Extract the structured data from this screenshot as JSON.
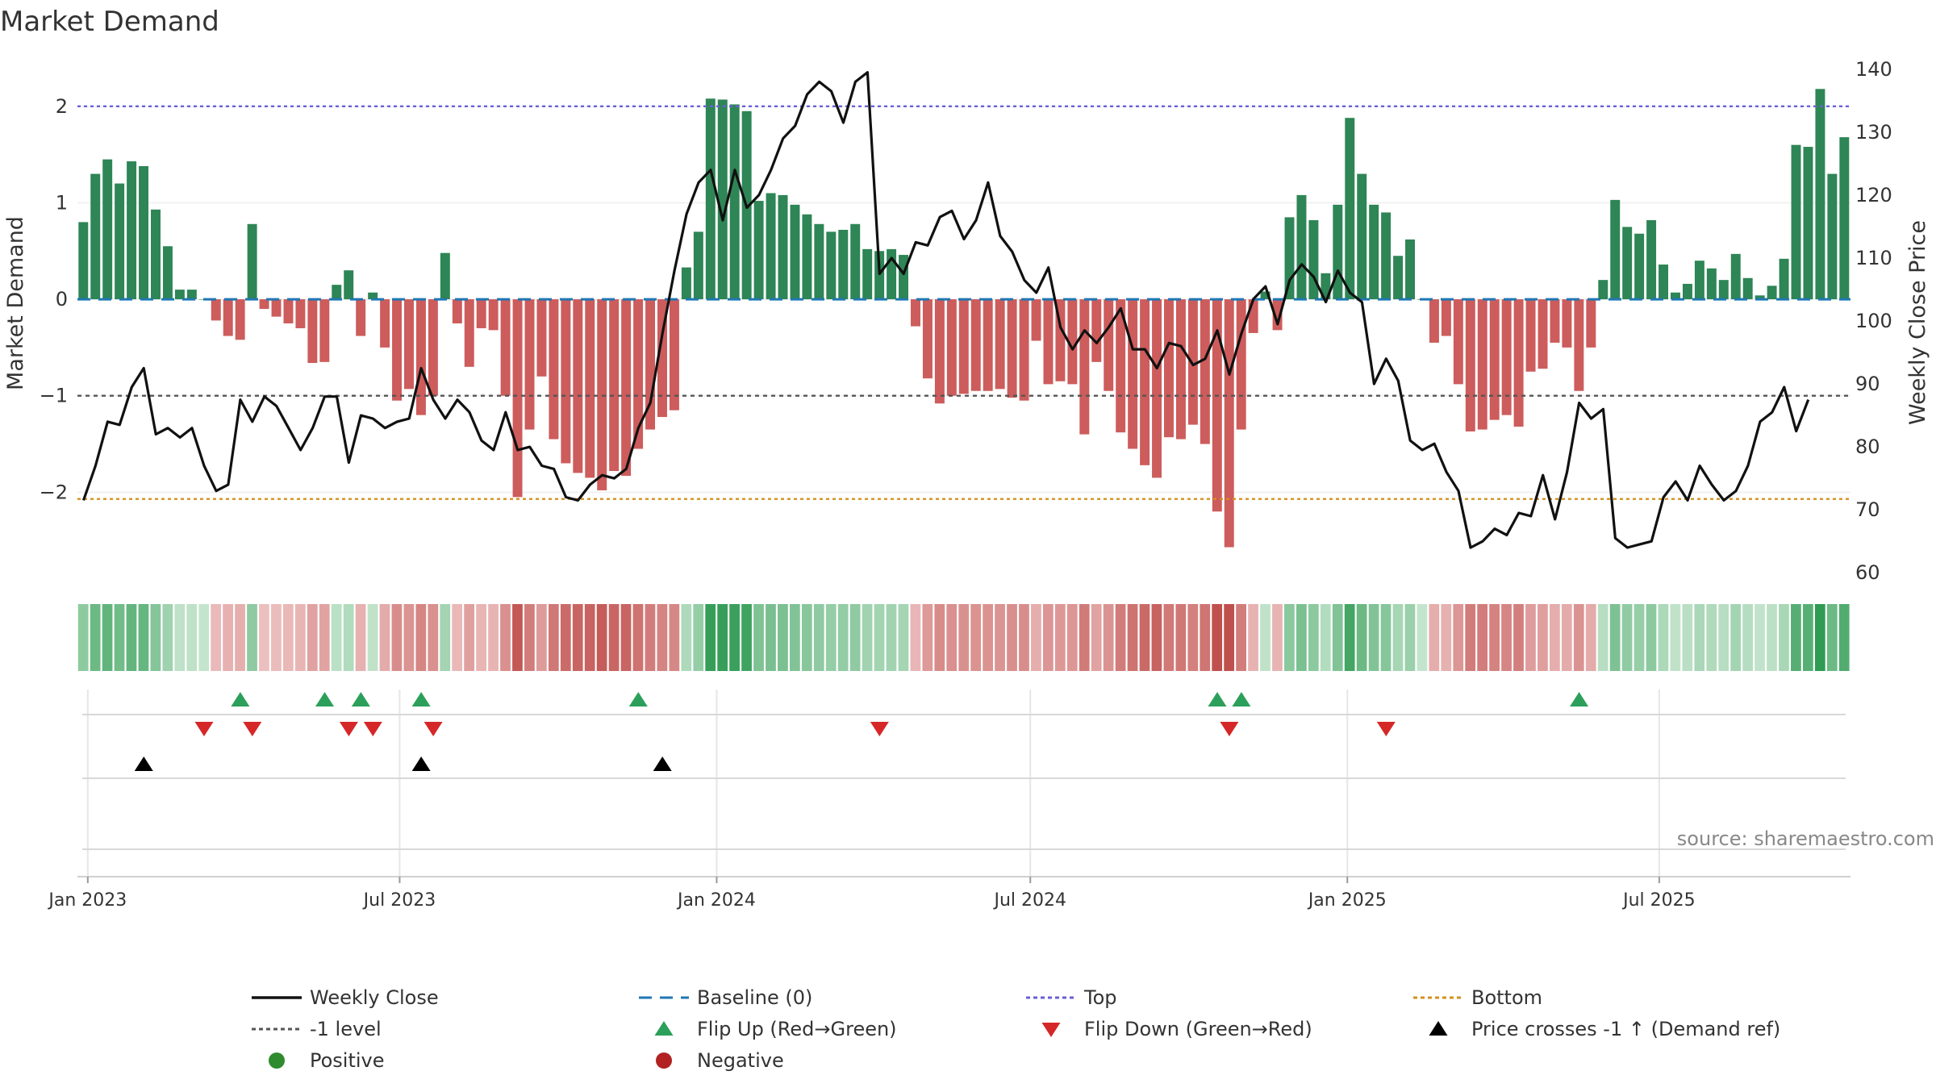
{
  "chart_data": {
    "type": "bar",
    "title": "Market Demand",
    "source": "source: sharemaestro.com",
    "left_axis": {
      "label": "Market Demand",
      "range": [
        -2.9,
        2.45
      ],
      "ticks": [
        "2",
        "1",
        "0",
        "−1",
        "−2"
      ],
      "tick_values": [
        2,
        1,
        0,
        -1,
        -2
      ]
    },
    "right_axis": {
      "label": "Weekly Close Price",
      "range": [
        59,
        141
      ],
      "ticks": [
        "140",
        "130",
        "120",
        "110",
        "100",
        "90",
        "80",
        "70",
        "60"
      ],
      "tick_values": [
        140,
        130,
        120,
        110,
        100,
        90,
        80,
        70,
        60
      ]
    },
    "x_axis": {
      "start_date": "2022-12-26",
      "week_count": 145,
      "ticks": [
        "Jan 2023",
        "Jul 2023",
        "Jan 2024",
        "Jul 2024",
        "Jan 2025",
        "Jul 2025"
      ],
      "tick_dates": [
        "2023-01-01",
        "2023-07-01",
        "2024-01-01",
        "2024-07-01",
        "2025-01-01",
        "2025-07-01"
      ]
    },
    "reference_lines": {
      "top": 2.0,
      "bottom": -2.07,
      "minus_one": -1.0,
      "baseline": 0
    },
    "series": [
      {
        "name": "Market Demand",
        "kind": "bar",
        "values": [
          0.8,
          1.3,
          1.45,
          1.2,
          1.43,
          1.38,
          0.93,
          0.55,
          0.1,
          0.1,
          0.0,
          -0.22,
          -0.38,
          -0.42,
          0.78,
          -0.1,
          -0.18,
          -0.25,
          -0.3,
          -0.66,
          -0.65,
          0.15,
          0.3,
          -0.38,
          0.07,
          -0.5,
          -1.05,
          -0.93,
          -1.2,
          -1.0,
          0.48,
          -0.25,
          -0.7,
          -0.3,
          -0.32,
          -1.0,
          -2.05,
          -1.35,
          -0.8,
          -1.45,
          -1.7,
          -1.8,
          -1.85,
          -1.98,
          -1.78,
          -1.83,
          -1.55,
          -1.35,
          -1.22,
          -1.15,
          0.33,
          0.7,
          2.08,
          2.07,
          2.02,
          1.95,
          1.02,
          1.1,
          1.08,
          0.98,
          0.88,
          0.78,
          0.7,
          0.72,
          0.78,
          0.52,
          0.5,
          0.52,
          0.46,
          -0.28,
          -0.82,
          -1.08,
          -1.0,
          -0.98,
          -0.95,
          -0.95,
          -0.93,
          -1.02,
          -1.05,
          -0.43,
          -0.88,
          -0.85,
          -0.88,
          -1.4,
          -0.65,
          -0.95,
          -1.38,
          -1.55,
          -1.72,
          -1.85,
          -1.43,
          -1.45,
          -1.3,
          -1.5,
          -2.2,
          -2.57,
          -1.35,
          -0.35,
          0.08,
          -0.32,
          0.85,
          1.08,
          0.82,
          0.27,
          0.98,
          1.88,
          1.3,
          0.98,
          0.9,
          0.45,
          0.62,
          0.0,
          -0.45,
          -0.38,
          -0.88,
          -1.37,
          -1.35,
          -1.25,
          -1.2,
          -1.32,
          -0.75,
          -0.72,
          -0.45,
          -0.5,
          -0.95,
          -0.5,
          0.2,
          1.03,
          0.75,
          0.68,
          0.82,
          0.36,
          0.07,
          0.16,
          0.4,
          0.32,
          0.2,
          0.47,
          0.22,
          0.04,
          0.14,
          0.42,
          1.6,
          1.58,
          2.18,
          1.3,
          1.68
        ]
      },
      {
        "name": "Weekly Close",
        "kind": "line",
        "values": [
          71.5,
          77,
          84,
          83.5,
          89.5,
          92.5,
          82,
          83,
          81.5,
          83,
          77,
          73,
          74,
          87.5,
          84,
          88,
          86.5,
          83,
          79.5,
          83,
          88,
          88,
          77.5,
          85,
          84.5,
          83,
          84,
          84.5,
          92.5,
          87.5,
          84.5,
          87.5,
          85.5,
          81,
          79.5,
          85.5,
          79.5,
          80,
          77,
          76.5,
          72,
          71.5,
          74,
          75.5,
          75,
          76.5,
          83,
          87,
          98,
          108,
          117,
          122,
          124,
          116,
          124,
          118,
          120,
          124,
          129,
          131,
          136,
          138,
          136.5,
          131.5,
          138,
          139.5,
          107.5,
          110,
          107.5,
          112.5,
          112,
          116.5,
          117.5,
          113,
          116,
          122,
          113.5,
          111,
          106.5,
          104.5,
          108.5,
          99,
          95.5,
          98.5,
          96.5,
          99,
          102,
          95.5,
          95.5,
          92.5,
          96.5,
          96,
          93,
          94,
          98.5,
          91.5,
          98,
          103.5,
          105.5,
          99.5,
          106.5,
          109,
          107,
          103,
          108,
          104.5,
          103,
          90,
          94,
          90.5,
          81,
          79.5,
          80.5,
          76,
          73,
          64,
          65,
          67,
          66,
          69.5,
          69,
          75.5,
          68.5,
          76,
          87,
          84.5,
          86,
          65.5,
          64,
          64.5,
          65,
          72,
          74.5,
          71.5,
          77,
          74,
          71.5,
          73,
          77,
          84,
          85.5,
          89.5,
          82.5,
          87.5
        ]
      }
    ],
    "flip_up_weeks": [
      13,
      20,
      23,
      28,
      46,
      94,
      96,
      124
    ],
    "flip_down_weeks": [
      10,
      14,
      22,
      24,
      29,
      66,
      95,
      108
    ],
    "price_cross_weeks": [
      5,
      28,
      48
    ],
    "legend": {
      "columns": 4,
      "entries": [
        {
          "label": "Weekly Close",
          "symbol": "line",
          "color": "#111111"
        },
        {
          "label": "Baseline (0)",
          "symbol": "dash",
          "color": "#1f77b4"
        },
        {
          "label": "Top",
          "symbol": "dotted",
          "color": "#6a5fd8"
        },
        {
          "label": "Bottom",
          "symbol": "dotted",
          "color": "#d4901c"
        },
        {
          "label": "-1 level",
          "symbol": "dotted",
          "color": "#555555"
        },
        {
          "label": "Flip Up (Red→Green)",
          "symbol": "triangle-up",
          "color": "#2ca05a"
        },
        {
          "label": "Flip Down (Green→Red)",
          "symbol": "triangle-down",
          "color": "#d62728"
        },
        {
          "label": "Price crosses -1 ↑ (Demand ref)",
          "symbol": "triangle-up",
          "color": "#000000"
        },
        {
          "label": "Positive",
          "symbol": "circle",
          "color": "#2e8b2e"
        },
        {
          "label": "Negative",
          "symbol": "circle",
          "color": "#b22222"
        }
      ]
    },
    "colors": {
      "positive_bar": "#2e8555",
      "negative_bar": "#cd5c5c",
      "price_line": "#111111",
      "baseline": "#1f77b4",
      "top_line": "#6a5fd8",
      "bottom_line": "#d4901c",
      "minus_one_line": "#555555",
      "grid": "#e6e6e6",
      "text": "#333333",
      "muted_text": "#888888"
    }
  }
}
